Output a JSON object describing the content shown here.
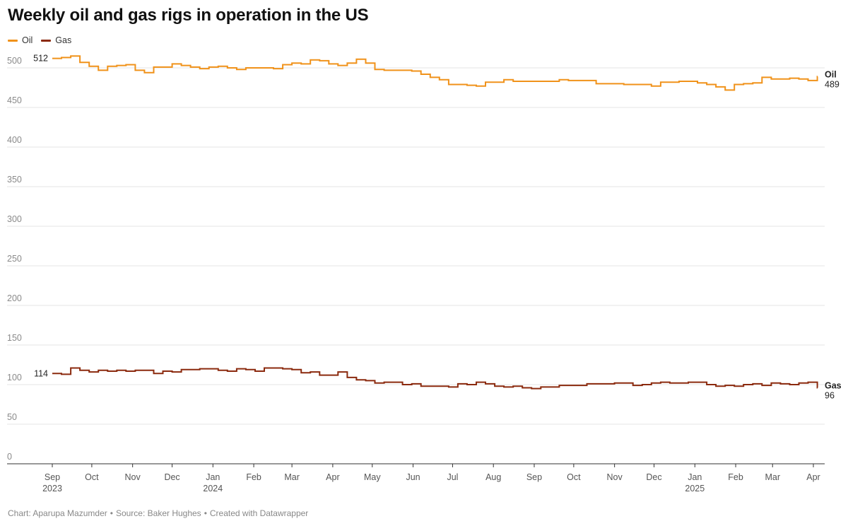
{
  "title": "Weekly oil and gas rigs in operation in the US",
  "footer": {
    "chart_by": "Chart: Aparupa Mazumder",
    "source": "Source: Baker Hughes",
    "created": "Created with Datawrapper",
    "separator": "•"
  },
  "colors": {
    "oil": "#f0921a",
    "gas": "#8b2a0e",
    "grid": "#e6e6e6",
    "tick": "#aaaaaa"
  },
  "chart_data": {
    "type": "line",
    "interpolation": "step",
    "title": "Weekly oil and gas rigs in operation in the US",
    "xlabel": "",
    "ylabel": "",
    "x_start": "2023-09-01",
    "x_step_days": 7,
    "ylim": [
      0,
      500
    ],
    "yticks": [
      0,
      50,
      100,
      150,
      200,
      250,
      300,
      350,
      400,
      450,
      500
    ],
    "grid": true,
    "legend_position": "top-left",
    "x_ticks": [
      {
        "date": "2023-09-01",
        "label": "Sep",
        "year": "2023"
      },
      {
        "date": "2023-10-01",
        "label": "Oct",
        "year": ""
      },
      {
        "date": "2023-11-01",
        "label": "Nov",
        "year": ""
      },
      {
        "date": "2023-12-01",
        "label": "Dec",
        "year": ""
      },
      {
        "date": "2024-01-01",
        "label": "Jan",
        "year": "2024"
      },
      {
        "date": "2024-02-01",
        "label": "Feb",
        "year": ""
      },
      {
        "date": "2024-03-01",
        "label": "Mar",
        "year": ""
      },
      {
        "date": "2024-04-01",
        "label": "Apr",
        "year": ""
      },
      {
        "date": "2024-05-01",
        "label": "May",
        "year": ""
      },
      {
        "date": "2024-06-01",
        "label": "Jun",
        "year": ""
      },
      {
        "date": "2024-07-01",
        "label": "Jul",
        "year": ""
      },
      {
        "date": "2024-08-01",
        "label": "Aug",
        "year": ""
      },
      {
        "date": "2024-09-01",
        "label": "Sep",
        "year": ""
      },
      {
        "date": "2024-10-01",
        "label": "Oct",
        "year": ""
      },
      {
        "date": "2024-11-01",
        "label": "Nov",
        "year": ""
      },
      {
        "date": "2024-12-01",
        "label": "Dec",
        "year": ""
      },
      {
        "date": "2025-01-01",
        "label": "Jan",
        "year": "2025"
      },
      {
        "date": "2025-02-01",
        "label": "Feb",
        "year": ""
      },
      {
        "date": "2025-03-01",
        "label": "Mar",
        "year": ""
      },
      {
        "date": "2025-04-01",
        "label": "Apr",
        "year": ""
      }
    ],
    "series": [
      {
        "name": "Oil",
        "color": "#f0921a",
        "start_label": "512",
        "end_label": "489",
        "values": [
          512,
          513,
          515,
          507,
          502,
          497,
          502,
          503,
          504,
          497,
          494,
          501,
          501,
          505,
          503,
          501,
          499,
          501,
          502,
          500,
          498,
          500,
          500,
          500,
          499,
          504,
          506,
          505,
          510,
          509,
          505,
          503,
          506,
          511,
          506,
          498,
          497,
          497,
          497,
          496,
          492,
          488,
          485,
          479,
          479,
          478,
          477,
          482,
          482,
          485,
          483,
          483,
          483,
          483,
          483,
          485,
          484,
          484,
          484,
          480,
          480,
          480,
          479,
          479,
          479,
          477,
          482,
          482,
          483,
          483,
          481,
          479,
          476,
          472,
          479,
          480,
          481,
          488,
          486,
          486,
          487,
          486,
          484,
          489
        ]
      },
      {
        "name": "Gas",
        "color": "#8b2a0e",
        "start_label": "114",
        "end_label": "96",
        "values": [
          114,
          113,
          121,
          118,
          116,
          118,
          117,
          118,
          117,
          118,
          118,
          114,
          117,
          116,
          119,
          119,
          120,
          120,
          118,
          117,
          120,
          119,
          117,
          121,
          121,
          120,
          119,
          115,
          116,
          112,
          112,
          116,
          109,
          106,
          105,
          102,
          103,
          103,
          100,
          101,
          98,
          98,
          98,
          97,
          101,
          100,
          103,
          101,
          98,
          97,
          98,
          96,
          95,
          97,
          97,
          99,
          99,
          99,
          101,
          101,
          101,
          102,
          102,
          99,
          100,
          102,
          103,
          102,
          102,
          103,
          103,
          100,
          98,
          99,
          98,
          100,
          101,
          99,
          102,
          101,
          100,
          102,
          103,
          96
        ]
      }
    ]
  }
}
